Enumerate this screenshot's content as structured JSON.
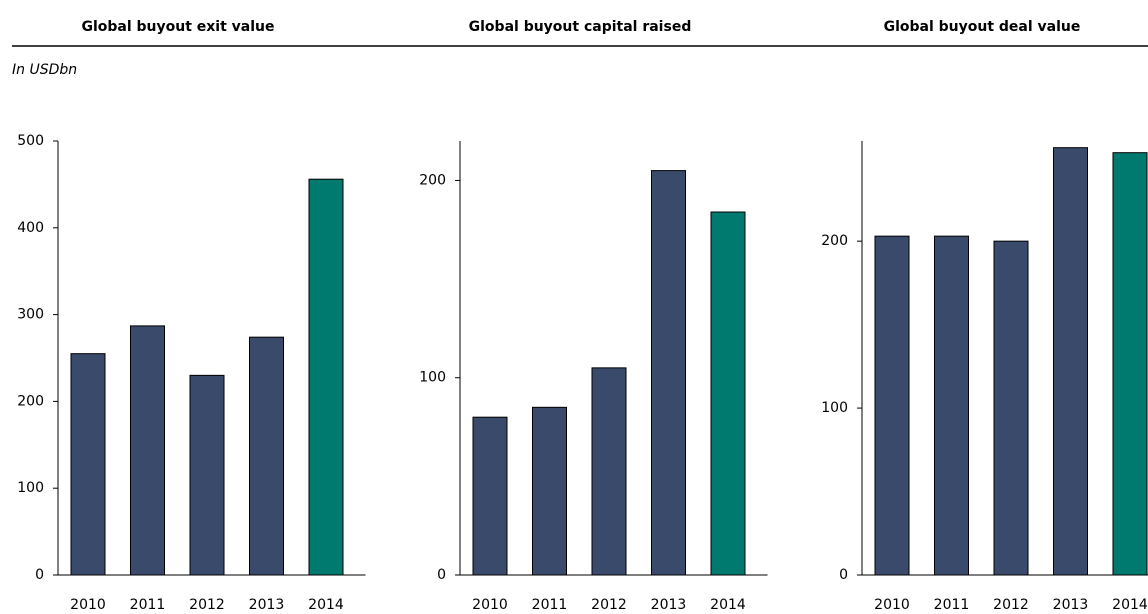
{
  "chart_data": [
    {
      "type": "bar",
      "title": "Global buyout exit value",
      "subtitle": "In USDbn",
      "categories": [
        "2010",
        "2011",
        "2012",
        "2013",
        "2014"
      ],
      "values": [
        255,
        287,
        230,
        274,
        456
      ],
      "colors": [
        "#3a4a6b",
        "#3a4a6b",
        "#3a4a6b",
        "#3a4a6b",
        "#007a6e"
      ],
      "ylim": [
        0,
        500
      ],
      "yticks": [
        0,
        100,
        200,
        300,
        400,
        500
      ],
      "grid": false
    },
    {
      "type": "bar",
      "title": "Global buyout capital raised",
      "categories": [
        "2010",
        "2011",
        "2012",
        "2013",
        "2014"
      ],
      "values": [
        80,
        85,
        105,
        205,
        184
      ],
      "colors": [
        "#3a4a6b",
        "#3a4a6b",
        "#3a4a6b",
        "#3a4a6b",
        "#007a6e"
      ],
      "ylim": [
        0,
        220
      ],
      "yticks": [
        0,
        100,
        200
      ],
      "grid": false
    },
    {
      "type": "bar",
      "title": "Global buyout deal value",
      "categories": [
        "2010",
        "2011",
        "2012",
        "2013",
        "2014"
      ],
      "values": [
        203,
        203,
        200,
        256,
        253
      ],
      "colors": [
        "#3a4a6b",
        "#3a4a6b",
        "#3a4a6b",
        "#3a4a6b",
        "#007a6e"
      ],
      "ylim": [
        0,
        260
      ],
      "yticks": [
        0,
        100,
        200
      ],
      "grid": false
    }
  ]
}
